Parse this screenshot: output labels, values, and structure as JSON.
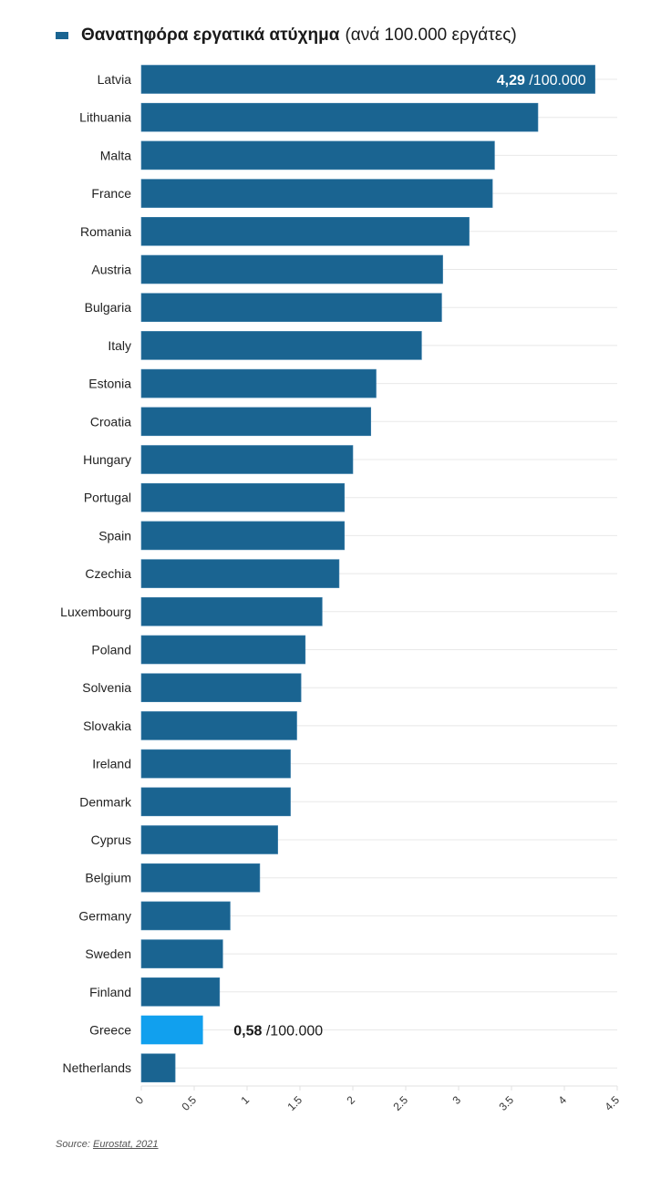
{
  "chart_data": {
    "type": "bar",
    "orientation": "horizontal",
    "title": "Θανατηφόρα εργατικά ατύχημα (ανά 100.000 εργάτες)",
    "legend": {
      "label_bold": "Θανατηφόρα εργατικά ατύχημα",
      "label_rest": "(ανά 100.000 εργάτες)",
      "position": "top-left"
    },
    "categories": [
      "Latvia",
      "Lithuania",
      "Malta",
      "France",
      "Romania",
      "Austria",
      "Bulgaria",
      "Italy",
      "Estonia",
      "Croatia",
      "Hungary",
      "Portugal",
      "Spain",
      "Czechia",
      "Luxembourg",
      "Poland",
      "Solvenia",
      "Slovakia",
      "Ireland",
      "Denmark",
      "Cyprus",
      "Belgium",
      "Germany",
      "Sweden",
      "Finland",
      "Greece",
      "Netherlands"
    ],
    "values": [
      4.29,
      3.75,
      3.34,
      3.32,
      3.1,
      2.85,
      2.84,
      2.65,
      2.22,
      2.17,
      2.0,
      1.92,
      1.92,
      1.87,
      1.71,
      1.55,
      1.51,
      1.47,
      1.41,
      1.41,
      1.29,
      1.12,
      0.84,
      0.77,
      0.74,
      0.58,
      0.32
    ],
    "highlight": "Greece",
    "annotations": [
      {
        "category": "Latvia",
        "value_text": "4,29",
        "suffix": "/100.000",
        "placement": "inside-end"
      },
      {
        "category": "Greece",
        "value_text": "0,58",
        "suffix": "/100.000",
        "placement": "outside"
      }
    ],
    "xlim": [
      0,
      4.5
    ],
    "xticks": [
      0,
      0.5,
      1,
      1.5,
      2,
      2.5,
      3,
      3.5,
      4,
      4.5
    ],
    "xtick_labels": [
      "0",
      "0.5",
      "1",
      "1.5",
      "2",
      "2.5",
      "3",
      "3.5",
      "4",
      "4.5"
    ],
    "xlabel": "",
    "ylabel": "",
    "grid": true,
    "colors": {
      "bar": "#1a6491",
      "highlight": "#11a0ee",
      "grid": "#e8e8e8"
    }
  },
  "source": {
    "prefix": "Source:",
    "link_text": "Eurostat, 2021"
  }
}
